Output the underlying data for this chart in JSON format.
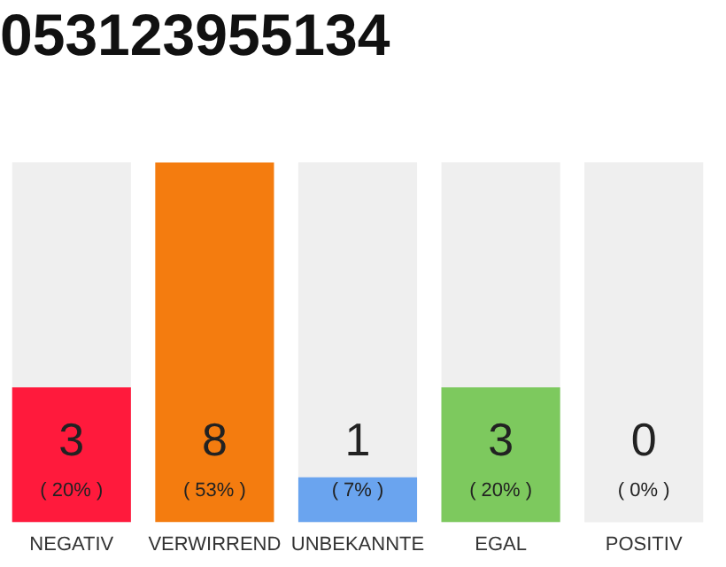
{
  "chart_data": {
    "type": "bar",
    "title": "053123955134",
    "categories": [
      "NEGATIV",
      "VERWIRREND",
      "UNBEKANNTE",
      "EGAL",
      "POSITIV"
    ],
    "values": [
      3,
      8,
      1,
      3,
      0
    ],
    "colors": [
      "#ff1a3c",
      "#f47c0f",
      "#6aa4ef",
      "#7dc95e",
      "#cccccc"
    ],
    "value_labels": [
      "3 ( 20% )",
      "8 ( 53% )",
      "1 ( 7% )",
      "3 ( 20% )",
      "0 ( 0% )"
    ],
    "bands": [
      {
        "axis": "x",
        "from": "NEGATIV",
        "to": "NEGATIV",
        "color": "#efefef"
      },
      {
        "axis": "x",
        "from": "UNBEKANNTE",
        "to": "UNBEKANNTE",
        "color": "#efefef"
      },
      {
        "axis": "x",
        "from": "EGAL",
        "to": "EGAL",
        "color": "#efefef"
      },
      {
        "axis": "x",
        "from": "POSITIV",
        "to": "POSITIV",
        "color": "#efefef"
      }
    ],
    "tick_labels": "x",
    "grid": false,
    "legend": false
  }
}
